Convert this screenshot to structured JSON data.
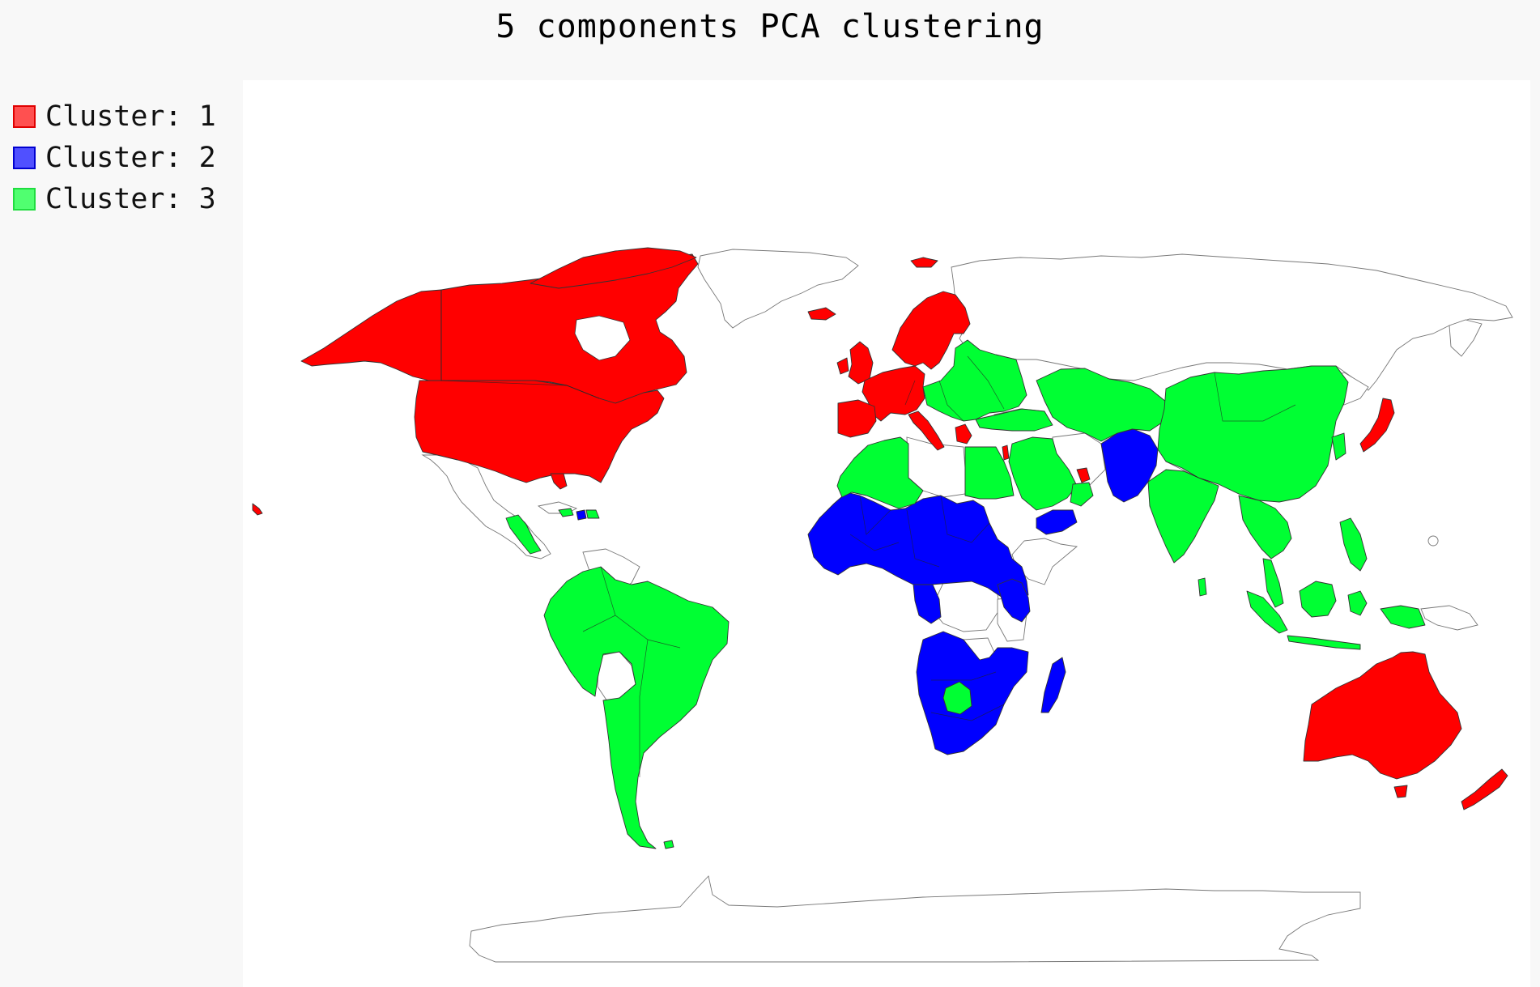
{
  "title": "5 components PCA clustering",
  "legend": {
    "items": [
      {
        "label": "Cluster: 1",
        "color": "#ff0000"
      },
      {
        "label": "Cluster: 2",
        "color": "#0000ff"
      },
      {
        "label": "Cluster: 3",
        "color": "#00ff33"
      }
    ]
  },
  "map": {
    "no_data_color": "#ffffff"
  }
}
